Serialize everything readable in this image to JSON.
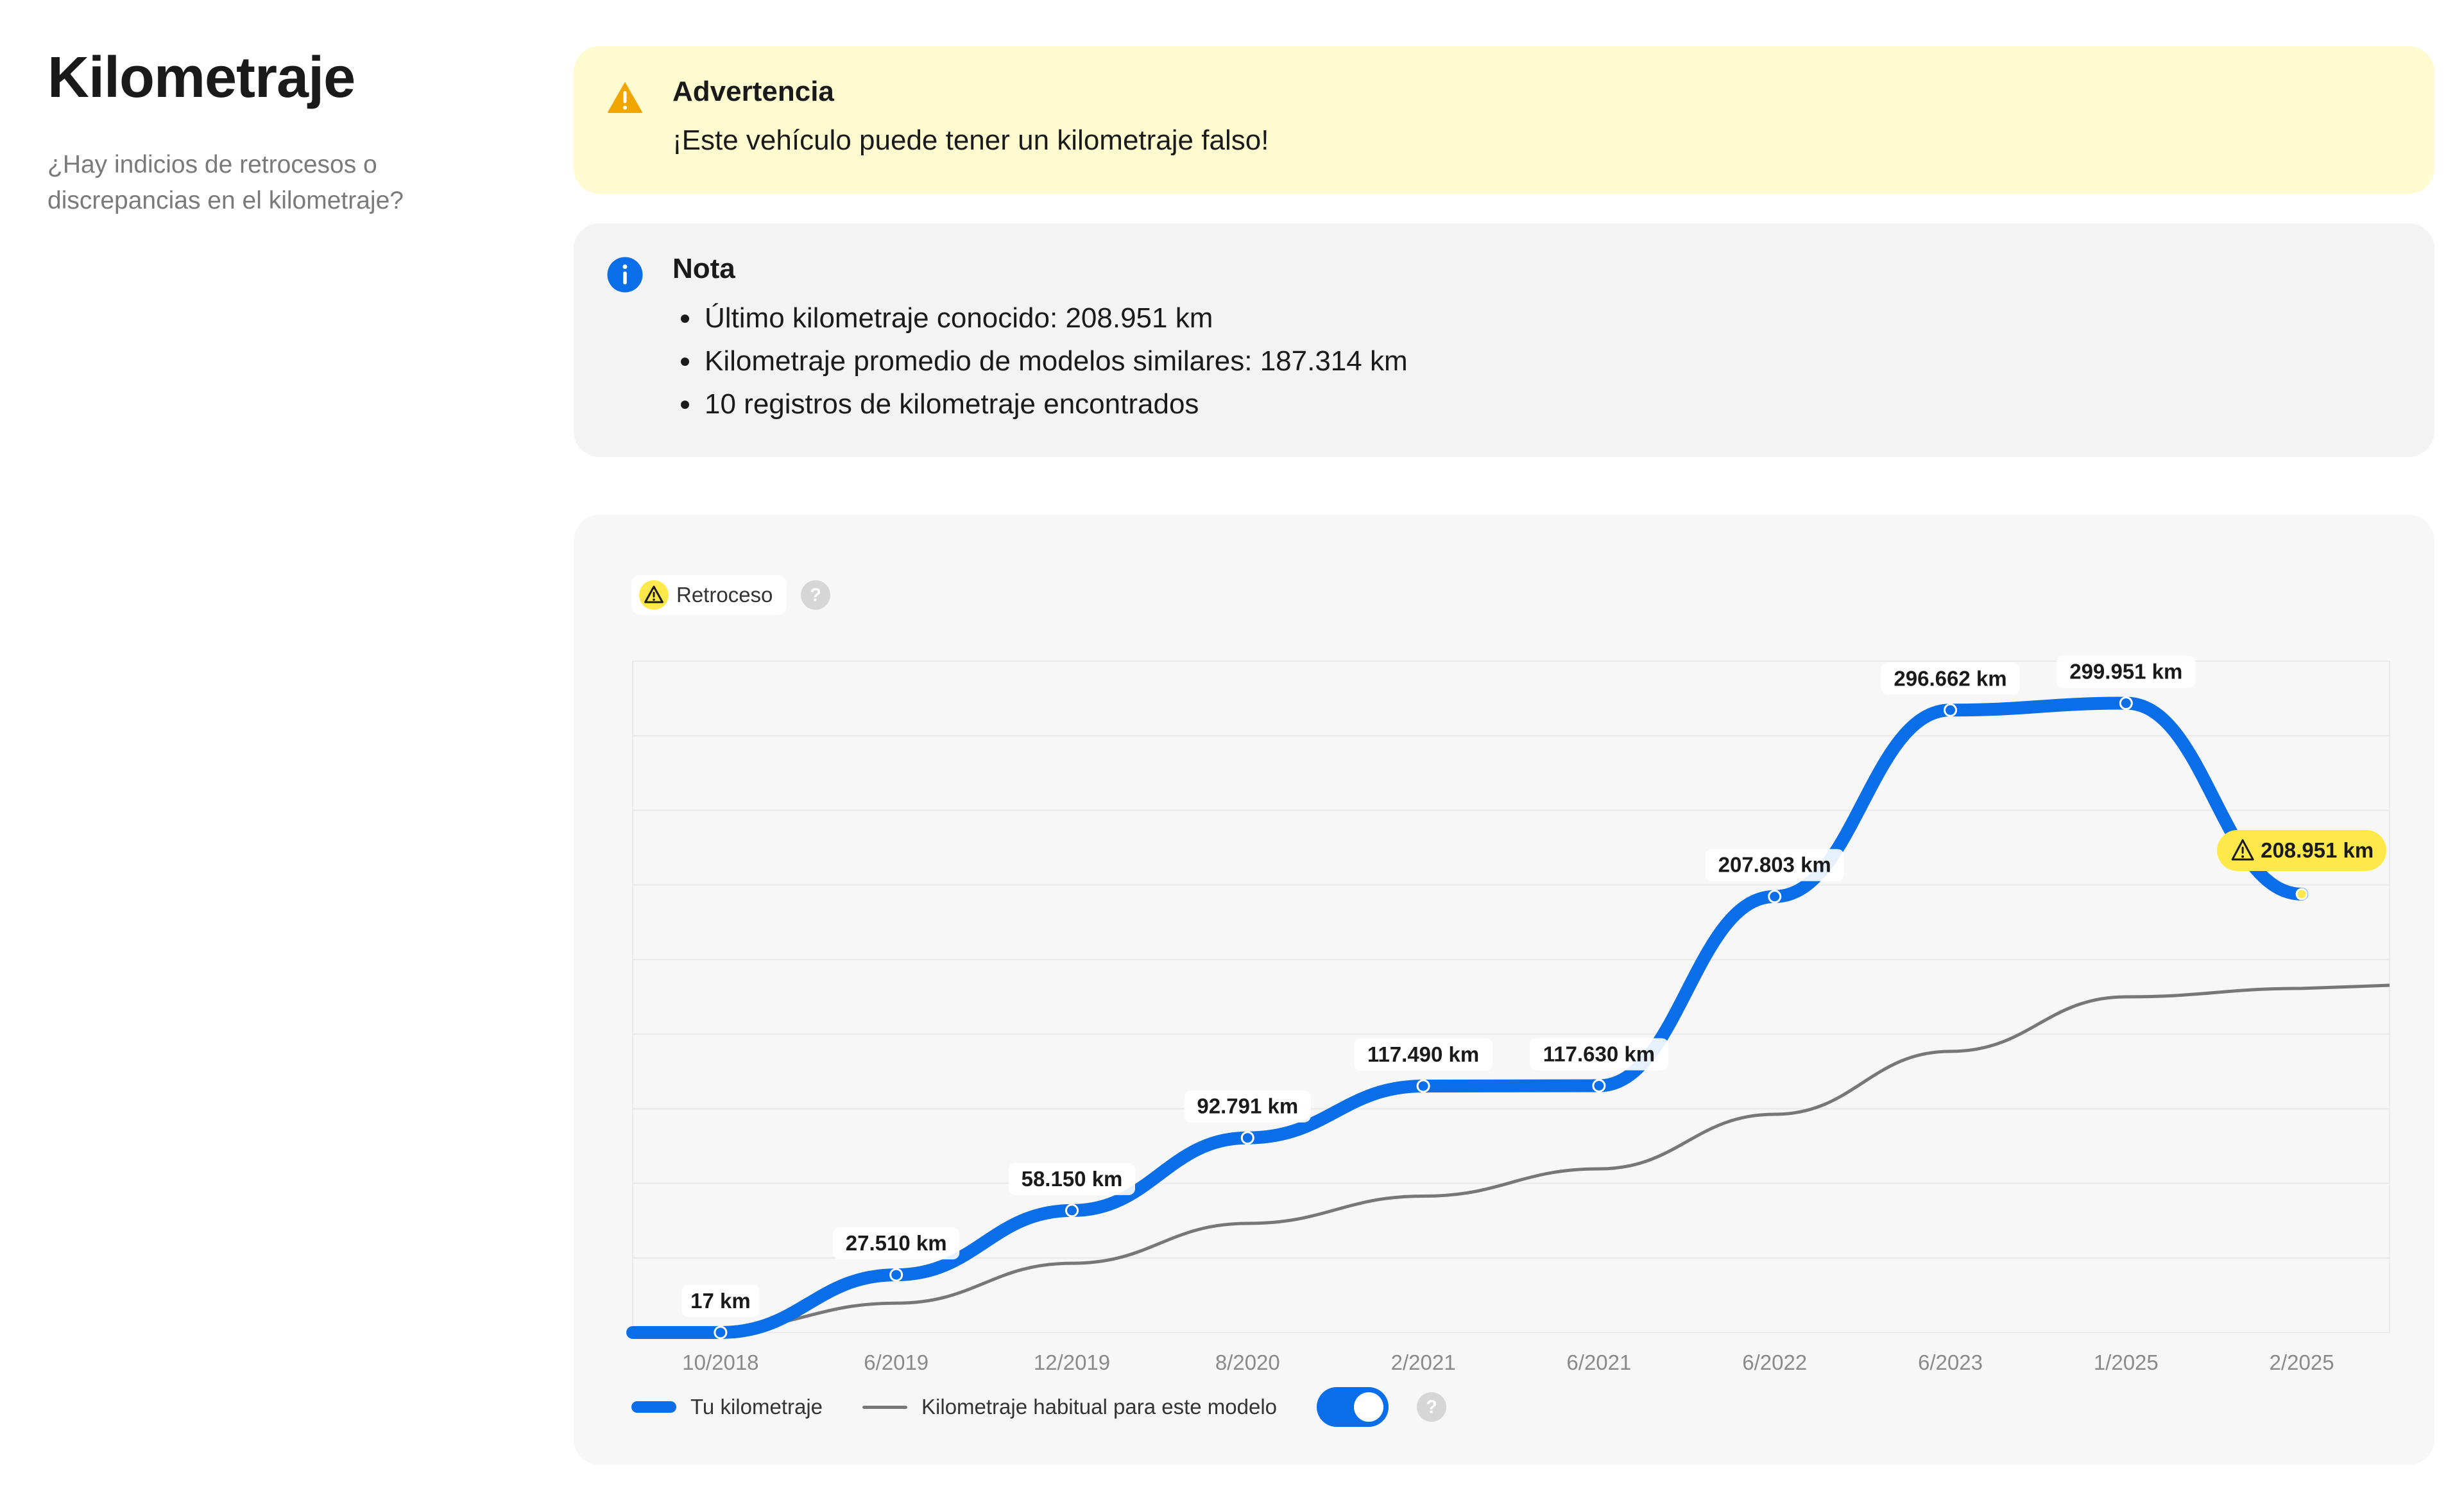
{
  "header": {
    "title": "Kilometraje",
    "subtitle": "¿Hay indicios de retrocesos o discrepancias en el kilometraje?"
  },
  "warning": {
    "title": "Advertencia",
    "message": "¡Este vehículo puede tener un kilometraje falso!",
    "color": "#fffbd1",
    "icon": "warning-triangle-icon"
  },
  "note": {
    "title": "Nota",
    "icon": "info-icon",
    "items": [
      "Último kilometraje conocido: 208.951 km",
      "Kilometraje promedio de modelos similares: 187.314 km",
      "10 registros de kilometraje encontrados"
    ]
  },
  "legend": {
    "retroceso_label": "Retroceso",
    "tu_kilometraje_label": "Tu kilometraje",
    "habitual_label": "Kilometraje habitual para este modelo",
    "toggle_on": true
  },
  "colors": {
    "accent": "#0a6ee9",
    "typical": "#777777",
    "rollback": "#ffe84a"
  },
  "chart_data": {
    "type": "line",
    "categories": [
      "10/2018",
      "6/2019",
      "12/2019",
      "8/2020",
      "2/2021",
      "6/2021",
      "6/2022",
      "6/2023",
      "1/2025",
      "2/2025"
    ],
    "ylim": [
      0,
      320000
    ],
    "grid": true,
    "series": [
      {
        "name": "Tu kilometraje",
        "values": [
          17,
          27510,
          58150,
          92791,
          117490,
          117630,
          207803,
          296662,
          299951,
          208951
        ],
        "labels": [
          "17 km",
          "27.510 km",
          "58.150 km",
          "92.791 km",
          "117.490 km",
          "117.630 km",
          "207.803 km",
          "296.662 km",
          "299.951 km",
          "208.951 km"
        ],
        "rollback_index": 9
      },
      {
        "name": "Kilometraje habitual para este modelo",
        "values": [
          2000,
          14000,
          33000,
          52000,
          65000,
          78000,
          104000,
          134000,
          160000,
          164000
        ]
      }
    ]
  }
}
